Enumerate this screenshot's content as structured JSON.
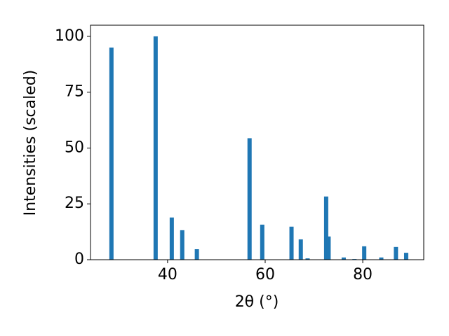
{
  "chart_data": {
    "type": "bar",
    "x_label": "2θ (°)",
    "y_label": "Intensities (scaled)",
    "x": [
      28.49,
      37.55,
      40.86,
      43.0,
      46.0,
      56.8,
      59.4,
      65.4,
      67.3,
      68.7,
      72.5,
      73.0,
      76.1,
      78.3,
      80.3,
      83.8,
      86.8,
      88.9
    ],
    "values": [
      95,
      100,
      18.9,
      13.2,
      4.7,
      54.4,
      15.7,
      14.8,
      9.1,
      0.6,
      28.3,
      10.4,
      1.0,
      0.3,
      6.0,
      1.0,
      5.7,
      3.1
    ],
    "color": "#1f77b4",
    "xlim": [
      24.2,
      92.5
    ],
    "xticks": [
      40,
      60,
      80
    ],
    "ylim": [
      0,
      105
    ],
    "yticks": [
      0,
      25,
      50,
      75,
      100
    ],
    "grid": false
  }
}
